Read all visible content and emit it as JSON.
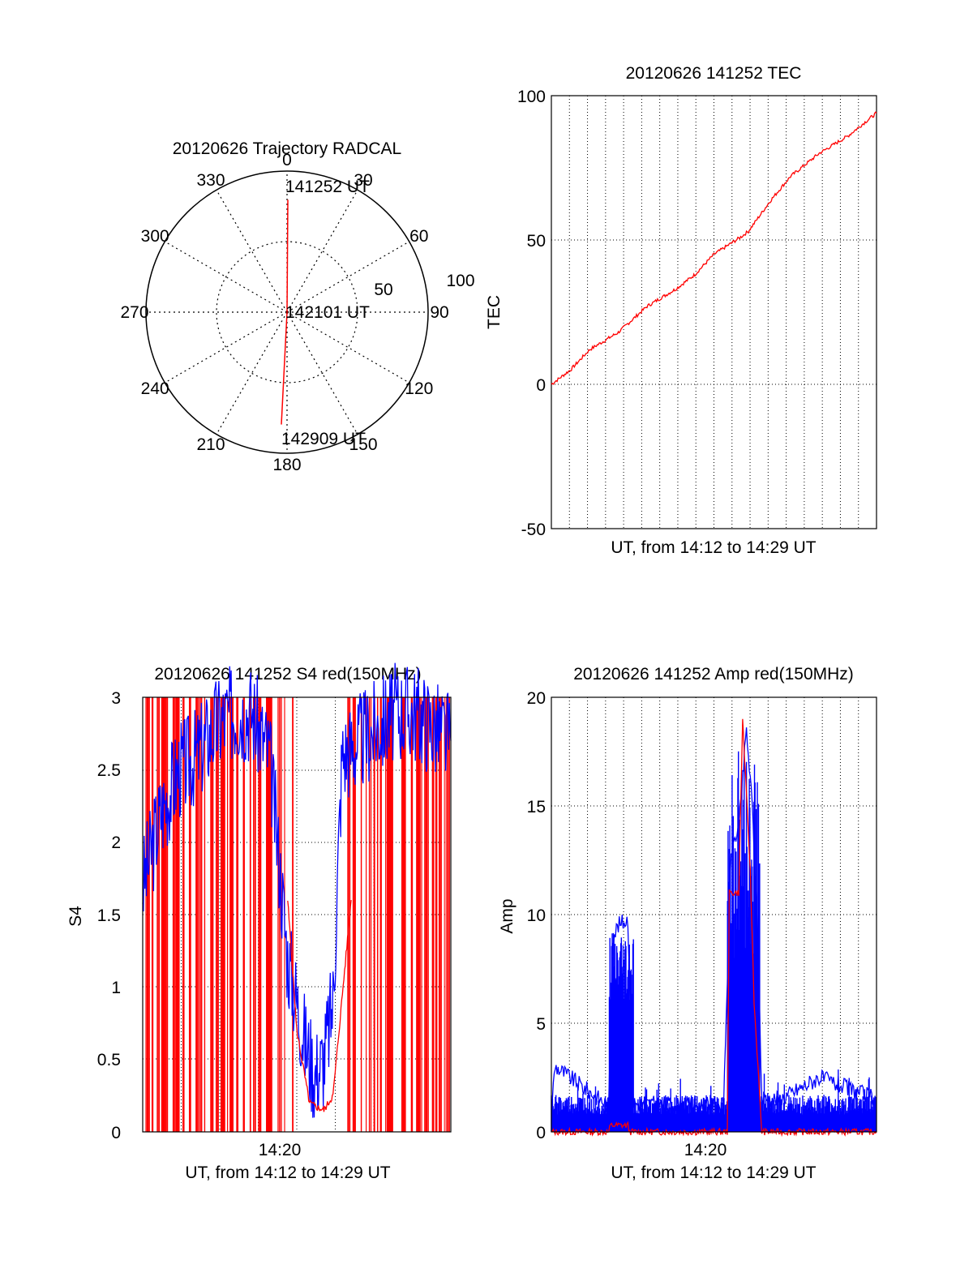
{
  "colors": {
    "red_series": "#ff0000",
    "blue_series": "#0000ff",
    "axes": "#000000",
    "grid": "#000000"
  },
  "chart_data": [
    {
      "type": "polar",
      "title": "20120626 Trajectory RADCAL",
      "angle_labels": [
        "0",
        "30",
        "60",
        "90",
        "120",
        "150",
        "180",
        "210",
        "240",
        "270",
        "300",
        "330"
      ],
      "radial_labels": [
        "50",
        "100"
      ],
      "radial_range": [
        0,
        100
      ],
      "grid": true,
      "annotations": {
        "start": "141252 UT",
        "middle": "142101 UT",
        "end": "142909 UT"
      },
      "trajectory": [
        {
          "azimuth": 0,
          "zenith": 90,
          "label": "141252 UT"
        },
        {
          "azimuth": 0,
          "zenith": 0,
          "label": "142101 UT"
        },
        {
          "azimuth": 180,
          "zenith": 90,
          "label": "142909 UT"
        }
      ]
    },
    {
      "type": "line",
      "title": "20120626 141252 TEC",
      "xlabel": "UT, from 14:12 to 14:29 UT",
      "ylabel": "TEC",
      "xlim": [
        0,
        17
      ],
      "ylim": [
        -50,
        100
      ],
      "yticks": [
        "100",
        "50",
        "0",
        "-50"
      ],
      "grid": true,
      "series": [
        {
          "color": "#ff0000",
          "x": [
            0,
            1,
            2,
            3.5,
            5,
            6.5,
            7.5,
            8.5,
            9.9,
            10.3,
            11.5,
            12.5,
            14,
            15.5,
            17
          ],
          "y": [
            0,
            5,
            12,
            18,
            27,
            33,
            38,
            45,
            51,
            53,
            64,
            72,
            80,
            86,
            94
          ]
        }
      ]
    },
    {
      "type": "line",
      "title": "20120626 141252 S4 red(150MHz)",
      "xlabel": "UT, from 14:12 to 14:29 UT",
      "ylabel": "S4",
      "xtick_labels": [
        "14:20"
      ],
      "xlim": [
        0,
        17
      ],
      "ylim": [
        0,
        3
      ],
      "yticks": [
        "3",
        "2.5",
        "2",
        "1.5",
        "1",
        "0.5",
        "0"
      ],
      "grid": true,
      "series": [
        {
          "color": "#ff0000",
          "x": [
            0,
            2,
            4,
            6,
            8,
            8.5,
            9.2,
            9.6,
            10.0,
            10.5,
            11.5,
            13,
            15,
            17
          ],
          "y": [
            1.4,
            2.2,
            1.8,
            2.3,
            1.6,
            0.7,
            0.2,
            0.17,
            0.15,
            0.25,
            1.6,
            2.0,
            1.8,
            2.1
          ]
        },
        {
          "color": "#0000ff",
          "x": [
            0,
            1,
            2,
            3,
            4,
            5,
            6,
            7,
            8,
            9,
            9.5,
            10,
            10.5,
            11,
            12,
            13,
            14,
            15,
            16,
            17
          ],
          "y": [
            1.7,
            2.2,
            2.5,
            2.6,
            2.8,
            2.9,
            2.9,
            2.6,
            1.2,
            0.6,
            0.4,
            0.5,
            0.9,
            2.6,
            2.7,
            2.8,
            2.9,
            2.9,
            2.8,
            2.7
          ]
        }
      ]
    },
    {
      "type": "line",
      "title": "20120626 141252 Amp red(150MHz)",
      "xlabel": "UT, from 14:12 to 14:29 UT",
      "ylabel": "Amp",
      "xtick_labels": [
        "14:20"
      ],
      "xlim": [
        0,
        17
      ],
      "ylim": [
        0,
        20
      ],
      "yticks": [
        "20",
        "15",
        "10",
        "5",
        "0"
      ],
      "grid": true,
      "series": [
        {
          "color": "#ff0000",
          "x": [
            0,
            3.0,
            3.1,
            4.0,
            4.1,
            9.2,
            9.3,
            9.8,
            10.0,
            10.4,
            10.6,
            11.0,
            17
          ],
          "y": [
            0,
            0,
            0.3,
            0.3,
            0,
            0,
            11,
            11,
            19,
            12,
            6,
            0,
            0
          ]
        },
        {
          "color": "#0000ff",
          "x": [
            0,
            0.2,
            3.0,
            3.2,
            3.5,
            4.0,
            4.3,
            9.0,
            9.4,
            9.8,
            10.2,
            10.5,
            10.8,
            11.0,
            12.0,
            14.0,
            17
          ],
          "y": [
            1.2,
            3,
            1.2,
            9,
            9.5,
            9.8,
            1.3,
            1.2,
            13,
            14,
            18.5,
            15,
            9,
            1.5,
            1.5,
            2.5,
            1.5
          ]
        }
      ]
    }
  ]
}
